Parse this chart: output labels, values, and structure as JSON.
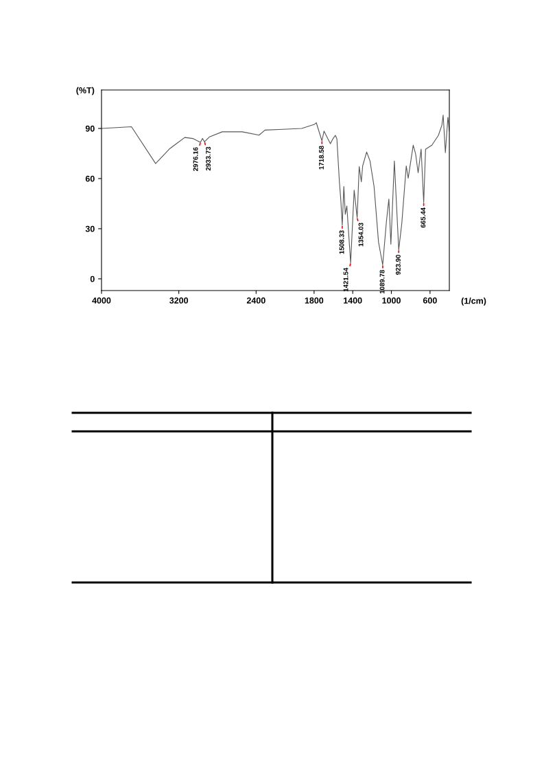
{
  "chart_data": {
    "type": "line",
    "xlabel": "(1/cm)",
    "ylabel": "(%T)",
    "x": [
      4000,
      3690,
      3440,
      3292,
      3138,
      3056,
      2976.16,
      2955,
      2933.73,
      2882,
      2750,
      2544,
      2369,
      2308,
      2123,
      1928,
      1795,
      1777,
      1718.58,
      1697,
      1631,
      1605,
      1580,
      1564,
      1538,
      1523,
      1508.33,
      1492,
      1477,
      1461,
      1421.54,
      1385,
      1354.03,
      1333,
      1311,
      1297,
      1256,
      1221,
      1179,
      1133,
      1089.78,
      1051,
      1026,
      1005,
      969,
      923.9,
      892,
      846,
      826,
      774,
      749,
      723,
      692,
      665.44,
      646,
      580,
      513,
      477,
      464,
      441,
      415,
      400
    ],
    "series": [
      {
        "color": "#555555",
        "values": [
          90,
          91,
          69,
          78,
          84.6,
          84,
          81.7,
          84,
          82,
          85,
          88,
          88,
          86,
          89,
          89.5,
          90,
          92.5,
          93.4,
          82.6,
          88.4,
          80.9,
          83.8,
          85.9,
          83.8,
          58.1,
          46.9,
          32,
          55.2,
          38.6,
          43.6,
          9.5,
          53.1,
          36.5,
          67.2,
          58.1,
          67.6,
          75.9,
          70.5,
          55.2,
          22,
          8.3,
          34.4,
          47.7,
          20.7,
          70.5,
          17.4,
          33.2,
          67.6,
          60.2,
          80,
          74.7,
          63.5,
          77.6,
          45.6,
          77.6,
          80,
          85.9,
          92,
          98,
          75.5,
          96.7,
          88.4
        ]
      }
    ],
    "xlim": [
      4000,
      400
    ],
    "xticks": [
      4000,
      3200,
      2400,
      1800,
      1400,
      1000,
      600
    ],
    "ylim": [
      -7,
      113
    ],
    "yticks": [
      0,
      30,
      60,
      90
    ],
    "grid": false,
    "marker": "none",
    "line_style": "solid",
    "annotations": [
      {
        "text": "2976.16",
        "x": 2976.16,
        "y": 81.7
      },
      {
        "text": "2933.73",
        "x": 2933.73,
        "y": 82
      },
      {
        "text": "1718.58",
        "x": 1718.58,
        "y": 82.6
      },
      {
        "text": "1508.33",
        "x": 1508.33,
        "y": 32
      },
      {
        "text": "1421.54",
        "x": 1421.54,
        "y": 9.5
      },
      {
        "text": "1354.03",
        "x": 1354.03,
        "y": 36.5
      },
      {
        "text": "1089.78",
        "x": 1089.78,
        "y": 8.3
      },
      {
        "text": "923.90",
        "x": 923.9,
        "y": 17.4
      },
      {
        "text": "665.44",
        "x": 665.44,
        "y": 45.6
      }
    ]
  }
}
